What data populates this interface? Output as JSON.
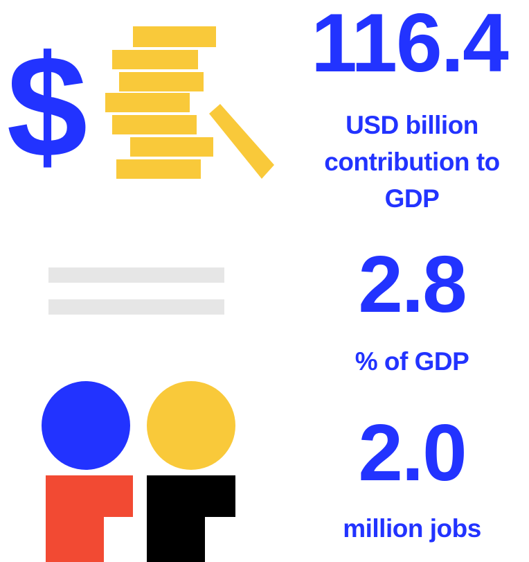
{
  "stats": [
    {
      "value": "116.4",
      "label": "USD billion contribution to GDP"
    },
    {
      "value": "2.8",
      "label": "% of GDP"
    },
    {
      "value": "2.0",
      "label": "million jobs"
    }
  ],
  "icons": {
    "money": "dollar-coins-icon",
    "equals": "equals-icon",
    "people": "people-icon"
  },
  "colors": {
    "primary_blue": "#2233ff",
    "coin_yellow": "#f9c93a",
    "equals_gray": "#e6e6e6",
    "person_red": "#f24a33",
    "person_black": "#000000"
  }
}
